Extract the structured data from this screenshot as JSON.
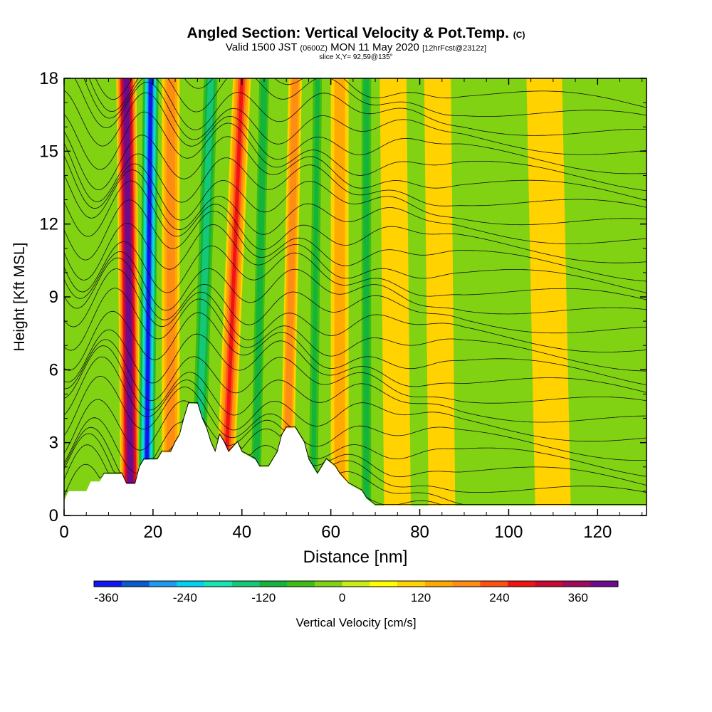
{
  "title": {
    "main": "Angled Section: Vertical Velocity & Pot.Temp.",
    "main_mark": "(C)",
    "valid_a": "Valid 1500 JST",
    "valid_b": "(0600Z)",
    "valid_c": "MON 11 May 2020",
    "valid_d": "[12hrFcst@2312z]",
    "slice": "slice X,Y= 92,59@135°"
  },
  "chart_data": {
    "type": "heatmap",
    "xlabel": "Distance [nm]",
    "ylabel": "Height [Kft MSL]",
    "xlim": [
      0,
      131
    ],
    "ylim": [
      0,
      18
    ],
    "x_ticks": [
      0,
      20,
      40,
      60,
      80,
      100,
      120
    ],
    "y_ticks": [
      0,
      3,
      6,
      9,
      12,
      15,
      18
    ],
    "colorbar": {
      "label": "Vertical Velocity [cm/s]",
      "min": -400,
      "max": 400,
      "step": 40,
      "tick_values": [
        -360,
        -240,
        -120,
        0,
        120,
        240,
        360
      ],
      "colors": [
        "#1414f0",
        "#0a5ad2",
        "#1e9bf0",
        "#00d2f0",
        "#14e6b4",
        "#14c878",
        "#14b43c",
        "#3cbe14",
        "#82d214",
        "#c8ee14",
        "#ffff00",
        "#ffd200",
        "#ffaa00",
        "#ff8c14",
        "#ff5014",
        "#f01414",
        "#c80a32",
        "#a00a5a",
        "#6e0a8c"
      ]
    },
    "terrain_kft": [
      [
        0,
        0.6
      ],
      [
        1,
        1
      ],
      [
        5,
        1
      ],
      [
        6,
        1.4
      ],
      [
        8,
        1.4
      ],
      [
        9,
        1.7
      ],
      [
        13,
        1.7
      ],
      [
        14,
        1.3
      ],
      [
        16,
        1.3
      ],
      [
        17,
        2
      ],
      [
        18,
        2.3
      ],
      [
        21,
        2.3
      ],
      [
        22,
        2.6
      ],
      [
        24,
        2.6
      ],
      [
        25,
        3
      ],
      [
        26,
        3.3
      ],
      [
        27,
        4
      ],
      [
        28,
        4.6
      ],
      [
        30,
        4.6
      ],
      [
        31,
        4
      ],
      [
        32,
        3.6
      ],
      [
        33,
        3
      ],
      [
        34,
        2.6
      ],
      [
        35,
        3.3
      ],
      [
        36,
        3
      ],
      [
        37,
        2.6
      ],
      [
        39,
        3
      ],
      [
        40,
        2.6
      ],
      [
        43,
        2.3
      ],
      [
        44,
        2
      ],
      [
        46,
        2
      ],
      [
        47,
        2.3
      ],
      [
        48,
        2.6
      ],
      [
        49,
        3.3
      ],
      [
        50,
        3.6
      ],
      [
        52,
        3.6
      ],
      [
        53,
        3.3
      ],
      [
        54,
        3
      ],
      [
        55,
        2.3
      ],
      [
        57,
        1.7
      ],
      [
        58,
        2
      ],
      [
        59,
        2.3
      ],
      [
        61,
        2
      ],
      [
        62,
        1.7
      ],
      [
        64,
        1.3
      ],
      [
        67,
        1
      ],
      [
        68,
        0.7
      ],
      [
        70,
        0.4
      ],
      [
        131,
        0.4
      ]
    ],
    "vertical_velocity_bands": [
      {
        "x": 15,
        "x_top": 14,
        "w": 4.5,
        "v": 380
      },
      {
        "x": 18.5,
        "x_top": 19.5,
        "w": 4,
        "v": -380
      },
      {
        "x": 24,
        "x_top": 24,
        "w": 4,
        "v": 150
      },
      {
        "x": 30,
        "x_top": 33,
        "w": 4,
        "v": -180
      },
      {
        "x": 36,
        "x_top": 40,
        "w": 4,
        "v": 200
      },
      {
        "x": 43,
        "x_top": 45,
        "w": 3,
        "v": -150
      },
      {
        "x": 50,
        "x_top": 52,
        "w": 3,
        "v": 150
      },
      {
        "x": 56,
        "x_top": 57,
        "w": 3,
        "v": -120
      },
      {
        "x": 62,
        "x_top": 62,
        "w": 4,
        "v": 100
      },
      {
        "x": 68,
        "x_top": 68,
        "w": 3,
        "v": -140
      },
      {
        "x": 75,
        "x_top": 74,
        "w": 6,
        "v": 70
      },
      {
        "x": 85,
        "x_top": 84,
        "w": 6,
        "v": 50
      },
      {
        "x": 96,
        "x_top": 96,
        "w": 6,
        "v": -40
      },
      {
        "x": 110,
        "x_top": 108,
        "w": 8,
        "v": 40
      },
      {
        "x": 126,
        "x_top": 126,
        "w": 6,
        "v": 30
      }
    ]
  }
}
